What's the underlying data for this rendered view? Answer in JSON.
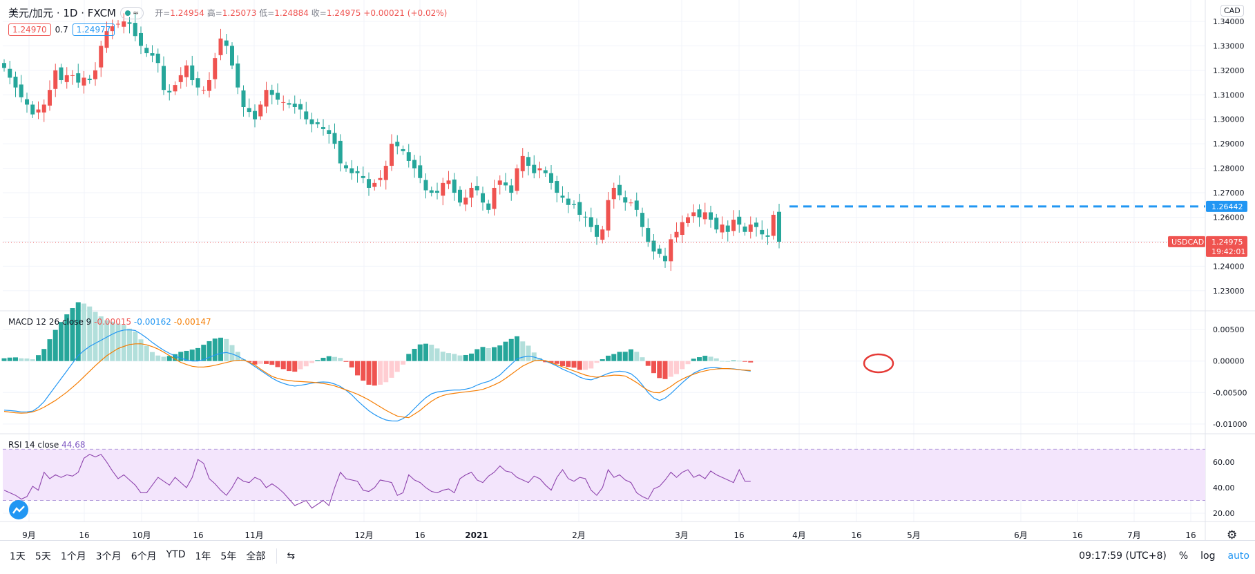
{
  "header": {
    "symbol": "美元/加元 · 1D · FXCM",
    "open_key": "开=",
    "open": "1.24954",
    "high_key": "高=",
    "high": "1.25073",
    "low_key": "低=",
    "low": "1.24884",
    "close_key": "收=",
    "close": "1.24975",
    "change": "+0.00021 (+0.02%)"
  },
  "quotes": {
    "sell": "1.24970",
    "spread": "0.7",
    "buy": "1.24977"
  },
  "macd_legend": {
    "label": "MACD 12 26 close 9",
    "hist": "-0.00015",
    "macd": "-0.00162",
    "signal": "-0.00147"
  },
  "rsi_legend": {
    "label": "RSI 14 close",
    "value": "44.68"
  },
  "currency_button": "CAD",
  "toolbar": {
    "ranges": [
      "1天",
      "5天",
      "1个月",
      "3个月",
      "6个月",
      "YTD",
      "1年",
      "5年",
      "全部"
    ],
    "time": "09:17:59 (UTC+8)",
    "percent": "%",
    "log": "log",
    "auto": "auto"
  },
  "colors": {
    "up": "#ef5350",
    "down": "#26a69a",
    "macd_line": "#2196f3",
    "signal_line": "#f57c00",
    "rsi_line": "#8e44ad",
    "rsi_band": "#f3e5fc"
  },
  "chart_data": [
    {
      "type": "candlestick",
      "title": "USDCAD",
      "y_ticks": [
        1.34,
        1.33,
        1.32,
        1.31,
        1.3,
        1.29,
        1.28,
        1.27,
        1.26,
        1.25,
        1.24,
        1.23
      ],
      "ylim": [
        1.226,
        1.3445
      ],
      "x_tick_labels": [
        "9月",
        "16",
        "10月",
        "16",
        "11月",
        "12月",
        "16",
        "2021",
        "2月",
        "3月",
        "16",
        "4月",
        "16",
        "5月",
        "6月",
        "16",
        "7月",
        "16"
      ],
      "last_price_label": "USDCAD",
      "last_price": "1.24975",
      "countdown": "19:42:01",
      "resistance_level": "1.26442",
      "close_path": [
        1.321,
        1.317,
        1.313,
        1.309,
        1.306,
        1.302,
        1.304,
        1.306,
        1.312,
        1.32,
        1.316,
        1.318,
        1.318,
        1.315,
        1.317,
        1.316,
        1.32,
        1.33,
        1.336,
        1.338,
        1.339,
        1.34,
        1.339,
        1.334,
        1.33,
        1.327,
        1.326,
        1.323,
        1.312,
        1.311,
        1.314,
        1.318,
        1.322,
        1.316,
        1.313,
        1.312,
        1.316,
        1.325,
        1.333,
        1.33,
        1.322,
        1.313,
        1.305,
        1.303,
        1.3,
        1.306,
        1.312,
        1.31,
        1.308,
        1.307,
        1.306,
        1.305,
        1.304,
        1.3,
        1.298,
        1.298,
        1.296,
        1.294,
        1.29,
        1.282,
        1.28,
        1.278,
        1.278,
        1.276,
        1.272,
        1.274,
        1.276,
        1.281,
        1.29,
        1.289,
        1.287,
        1.283,
        1.28,
        1.276,
        1.271,
        1.27,
        1.27,
        1.274,
        1.275,
        1.27,
        1.266,
        1.268,
        1.272,
        1.271,
        1.266,
        1.263,
        1.272,
        1.275,
        1.273,
        1.27,
        1.28,
        1.285,
        1.281,
        1.278,
        1.28,
        1.278,
        1.274,
        1.27,
        1.268,
        1.265,
        1.265,
        1.261,
        1.26,
        1.256,
        1.252,
        1.255,
        1.267,
        1.272,
        1.269,
        1.266,
        1.266,
        1.263,
        1.256,
        1.25,
        1.246,
        1.245,
        1.242,
        1.251,
        1.254,
        1.258,
        1.26,
        1.262,
        1.26,
        1.262,
        1.259,
        1.255,
        1.257,
        1.254,
        1.259,
        1.257,
        1.254,
        1.257,
        1.256,
        1.253,
        1.252,
        1.261,
        1.25
      ]
    },
    {
      "type": "macd",
      "parameters": "12 26 close 9",
      "y_ticks": [
        0.005,
        0.0,
        -0.005,
        -0.01
      ],
      "ylim": [
        -0.011,
        0.006
      ],
      "macd_path": [
        -0.0078,
        -0.0079,
        -0.0081,
        -0.008,
        -0.007,
        -0.005,
        -0.003,
        -0.001,
        0.001,
        0.0022,
        0.003,
        0.0038,
        0.0046,
        0.005,
        0.0049,
        0.004,
        0.0028,
        0.0018,
        0.001,
        0.0004,
        0.0,
        0.0,
        0.0006,
        0.0012,
        0.0014,
        0.0008,
        0.0,
        -0.001,
        -0.002,
        -0.003,
        -0.0036,
        -0.004,
        -0.0038,
        -0.0035,
        -0.0033,
        -0.0034,
        -0.004,
        -0.005,
        -0.0065,
        -0.0078,
        -0.0088,
        -0.0094,
        -0.0096,
        -0.009,
        -0.0075,
        -0.006,
        -0.005,
        -0.0048,
        -0.0046,
        -0.0046,
        -0.0043,
        -0.0036,
        -0.0032,
        -0.0024,
        -0.001,
        0.0004,
        0.0008,
        0.0006,
        0.0,
        -0.0006,
        -0.0014,
        -0.002,
        -0.0028,
        -0.003,
        -0.0024,
        -0.0018,
        -0.0016,
        -0.0018,
        -0.003,
        -0.005,
        -0.0064,
        -0.0058,
        -0.0044,
        -0.003,
        -0.0018,
        -0.0012,
        -0.001,
        -0.0012,
        -0.0012,
        -0.0014,
        -0.0016
      ],
      "signal_path": [
        -0.008,
        -0.0082,
        -0.0083,
        -0.008,
        -0.0072,
        -0.0062,
        -0.005,
        -0.0036,
        -0.002,
        -0.0004,
        0.001,
        0.002,
        0.0026,
        0.0028,
        0.0025,
        0.0018,
        0.0008,
        -0.0002,
        -0.0008,
        -0.001,
        -0.0008,
        -0.0004,
        0.0,
        0.0002,
        -0.0004,
        -0.0016,
        -0.0026,
        -0.003,
        -0.0032,
        -0.0033,
        -0.0034,
        -0.0036,
        -0.004,
        -0.0046,
        -0.0052,
        -0.006,
        -0.007,
        -0.008,
        -0.0088,
        -0.009,
        -0.008,
        -0.0066,
        -0.0056,
        -0.0052,
        -0.005,
        -0.0048,
        -0.0046,
        -0.004,
        -0.0032,
        -0.002,
        -0.0008,
        0.0,
        0.0002,
        -0.0004,
        -0.001,
        -0.0016,
        -0.0022,
        -0.0026,
        -0.0024,
        -0.0022,
        -0.0024,
        -0.0034,
        -0.0046,
        -0.0052,
        -0.0044,
        -0.0032,
        -0.0024,
        -0.0018,
        -0.0014,
        -0.0012,
        -0.0012,
        -0.0014,
        -0.0015
      ]
    },
    {
      "type": "line",
      "title": "RSI 14 close",
      "y_ticks": [
        60.0,
        40.0,
        20.0
      ],
      "ylim": [
        20,
        74
      ],
      "band": [
        30,
        70
      ],
      "rsi_path": [
        38,
        36,
        34,
        31,
        33,
        41,
        38,
        52,
        47,
        50,
        48,
        50,
        49,
        52,
        63,
        66,
        64,
        66,
        60,
        53,
        47,
        50,
        46,
        42,
        36,
        36,
        42,
        48,
        45,
        42,
        48,
        44,
        40,
        48,
        62,
        59,
        47,
        43,
        38,
        34,
        40,
        48,
        45,
        44,
        48,
        46,
        40,
        43,
        40,
        36,
        31,
        26,
        28,
        30,
        24,
        27,
        30,
        26,
        40,
        52,
        47,
        46,
        45,
        38,
        37,
        40,
        46,
        45,
        44,
        34,
        36,
        50,
        46,
        44,
        40,
        37,
        36,
        38,
        39,
        36,
        47,
        50,
        52,
        46,
        44,
        49,
        52,
        57,
        53,
        52,
        48,
        46,
        44,
        49,
        47,
        42,
        38,
        48,
        54,
        47,
        45,
        48,
        47,
        38,
        34,
        40,
        54,
        48,
        50,
        46,
        44,
        36,
        33,
        31,
        39,
        41,
        46,
        52,
        48,
        52,
        54,
        48,
        50,
        47,
        53,
        50,
        48,
        46,
        44,
        54,
        45,
        45
      ]
    }
  ]
}
